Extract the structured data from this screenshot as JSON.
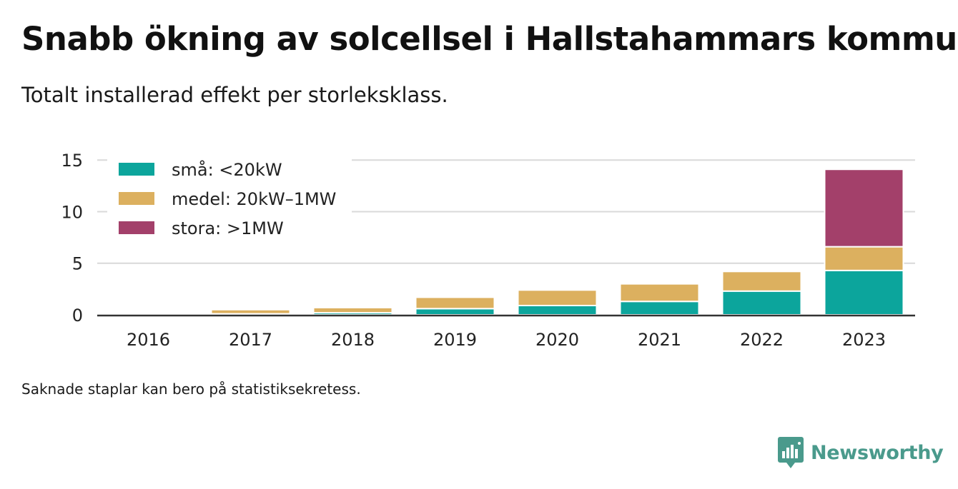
{
  "title": "Snabb ökning av solcellsel i Hallstahammars kommun",
  "subtitle": "Totalt installerad effekt per storleksklass.",
  "note": "Saknade staplar kan bero på statistiksekretess.",
  "brand": {
    "name": "Newsworthy",
    "icon": "newsworthy-logo-icon",
    "color": "#4a9a8c"
  },
  "chart_data": {
    "type": "bar",
    "stacked": true,
    "categories": [
      "2016",
      "2017",
      "2018",
      "2019",
      "2020",
      "2021",
      "2022",
      "2023"
    ],
    "series": [
      {
        "name": "små: <20kW",
        "color": "#0ca59c",
        "values": [
          0,
          0.1,
          0.2,
          0.6,
          0.9,
          1.3,
          2.3,
          4.3
        ]
      },
      {
        "name": "medel: 20kW–1MW",
        "color": "#dcb05f",
        "values": [
          0,
          0.4,
          0.5,
          1.1,
          1.5,
          1.7,
          1.9,
          2.3
        ]
      },
      {
        "name": "stora: >1MW",
        "color": "#a3406a",
        "values": [
          0,
          0,
          0,
          0,
          0,
          0,
          0,
          7.5
        ]
      }
    ],
    "y_ticks": [
      0,
      5,
      10,
      15
    ],
    "ylim": [
      0,
      15.5
    ],
    "xlabel": "",
    "ylabel": "",
    "grid": true,
    "legend_position": "top-left"
  }
}
